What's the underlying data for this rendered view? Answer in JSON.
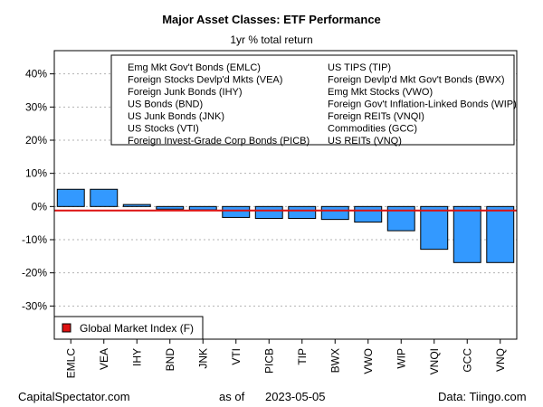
{
  "chart_data": {
    "type": "bar",
    "title": "Major Asset Classes: ETF Performance",
    "subtitle": "1yr % total return",
    "categories": [
      "EMLC",
      "VEA",
      "IHY",
      "BND",
      "JNK",
      "VTI",
      "PICB",
      "TIP",
      "BWX",
      "VWO",
      "WIP",
      "VNQI",
      "GCC",
      "VNQ"
    ],
    "values": [
      5.2,
      5.2,
      0.6,
      -0.8,
      -1.0,
      -3.3,
      -3.6,
      -3.6,
      -3.9,
      -4.7,
      -7.3,
      -12.9,
      -16.9,
      -16.9
    ],
    "ylim": [
      -40,
      47
    ],
    "yticks": [
      -30,
      -20,
      -10,
      0,
      10,
      20,
      30,
      40
    ],
    "ytick_labels": [
      "-30%",
      "-20%",
      "-10%",
      "0%",
      "10%",
      "20%",
      "30%",
      "40%"
    ],
    "grid": true,
    "reference_line": {
      "name": "Global Market Index (F)",
      "value": -1.2
    },
    "bar_color": "#3399ff",
    "reference_color": "#dd1111",
    "legend": {
      "placement": "top-right",
      "col1": [
        "Emg Mkt Gov't Bonds (EMLC)",
        "Foreign Stocks Devlp'd Mkts (VEA)",
        "Foreign Junk Bonds (IHY)",
        "US Bonds (BND)",
        "US Junk Bonds (JNK)",
        "US Stocks (VTI)",
        "Foreign Invest-Grade Corp Bonds (PICB)"
      ],
      "col2": [
        "US TIPS (TIP)",
        "Foreign Devlp'd Mkt Gov't Bonds (BWX)",
        "Emg Mkt Stocks (VWO)",
        "Foreign Gov't Inflation-Linked Bonds (WIP)",
        "Foreign REITs (VNQI)",
        "Commodities (GCC)",
        "US REITs (VNQ)"
      ]
    }
  },
  "footer": {
    "left": "CapitalSpectator.com",
    "as_of_label": "as of",
    "date": "2023-05-05",
    "right": "Data: Tiingo.com"
  }
}
